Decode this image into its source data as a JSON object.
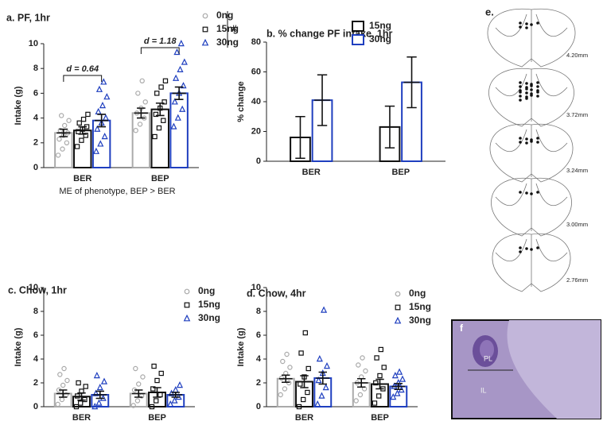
{
  "chart_data": [
    {
      "type": "bar",
      "title": "a. PF, 1hr",
      "ylabel": "Intake (g)",
      "categories": [
        "BER",
        "BEP"
      ],
      "ylim": [
        0,
        10
      ],
      "yticks": [
        0,
        2,
        4,
        6,
        8,
        10
      ],
      "legend": "upper right",
      "note": "ME of phenotype, BEP > BER",
      "annotations": [
        {
          "text": "d = 0.64"
        },
        {
          "text": "d = 1.18"
        },
        {
          "text": "#"
        }
      ],
      "series": [
        {
          "name": "0ng",
          "color": "#aaaaaa",
          "marker": "circle",
          "values": [
            2.8,
            4.4
          ],
          "errors": [
            0.3,
            0.4
          ],
          "points": [
            [
              1.0,
              1.5,
              2.0,
              2.3,
              2.6,
              2.8,
              3.0,
              3.4,
              3.8,
              4.2
            ],
            [
              3.0,
              3.5,
              4.0,
              4.4,
              4.8,
              5.3,
              6.0,
              7.0
            ]
          ]
        },
        {
          "name": "15ng",
          "color": "#111111",
          "marker": "square",
          "values": [
            3.0,
            4.7
          ],
          "errors": [
            0.3,
            0.5
          ],
          "points": [
            [
              1.7,
              2.2,
              2.6,
              2.9,
              3.1,
              3.3,
              3.6,
              3.9,
              4.3
            ],
            [
              2.5,
              3.2,
              3.8,
              4.3,
              4.8,
              5.3,
              6.0,
              6.5,
              7.0
            ]
          ]
        },
        {
          "name": "30ng",
          "color": "#1f3fbf",
          "marker": "triangle",
          "values": [
            3.8,
            6.0
          ],
          "errors": [
            0.5,
            0.5
          ],
          "points": [
            [
              1.3,
              1.9,
              2.5,
              3.1,
              3.6,
              4.0,
              4.5,
              5.0,
              5.7,
              6.3,
              6.9
            ],
            [
              3.3,
              4.0,
              4.7,
              5.3,
              6.0,
              6.6,
              7.2,
              7.9,
              8.5,
              9.3,
              10.0
            ]
          ]
        }
      ]
    },
    {
      "type": "bar",
      "title": "b. % change PF intake, 1hr",
      "ylabel": "% change",
      "categories": [
        "BER",
        "BEP"
      ],
      "ylim": [
        0,
        80
      ],
      "yticks": [
        0,
        20,
        40,
        60,
        80
      ],
      "legend": "upper right",
      "series": [
        {
          "name": "15ng",
          "color": "#111111",
          "values": [
            16,
            23
          ],
          "errors": [
            14,
            14
          ]
        },
        {
          "name": "30ng",
          "color": "#1f3fbf",
          "values": [
            41,
            53
          ],
          "errors": [
            17,
            17
          ]
        }
      ]
    },
    {
      "type": "bar",
      "title": "c. Chow, 1hr",
      "ylabel": "Intake (g)",
      "categories": [
        "BER",
        "BEP"
      ],
      "ylim": [
        0,
        10
      ],
      "yticks": [
        0,
        2,
        4,
        6,
        8,
        10
      ],
      "legend": "upper right",
      "series": [
        {
          "name": "0ng",
          "color": "#aaaaaa",
          "marker": "circle",
          "values": [
            1.1,
            1.1
          ],
          "errors": [
            0.3,
            0.3
          ],
          "points": [
            [
              0.2,
              0.6,
              1.0,
              1.4,
              1.8,
              2.2,
              2.7,
              3.2
            ],
            [
              0.1,
              0.5,
              0.9,
              1.4,
              1.9,
              2.5,
              3.2
            ]
          ]
        },
        {
          "name": "15ng",
          "color": "#111111",
          "marker": "square",
          "values": [
            0.85,
            1.2
          ],
          "errors": [
            0.3,
            0.4
          ],
          "points": [
            [
              0,
              0.3,
              0.6,
              0.9,
              1.3,
              1.7,
              2.0
            ],
            [
              0,
              0.5,
              1.0,
              1.5,
              2.2,
              2.8,
              3.4
            ]
          ]
        },
        {
          "name": "30ng",
          "color": "#1f3fbf",
          "marker": "triangle",
          "values": [
            1.0,
            1.0
          ],
          "errors": [
            0.3,
            0.2
          ],
          "points": [
            [
              0,
              0.3,
              0.7,
              1.1,
              1.6,
              2.1,
              2.6
            ],
            [
              0.2,
              0.5,
              0.8,
              1.1,
              1.4,
              1.8
            ]
          ]
        }
      ]
    },
    {
      "type": "bar",
      "title": "d. Chow, 4hr",
      "ylabel": "Intake (g)",
      "categories": [
        "BER",
        "BEP"
      ],
      "ylim": [
        0,
        10
      ],
      "yticks": [
        0,
        2,
        4,
        6,
        8,
        10
      ],
      "legend": "upper right",
      "series": [
        {
          "name": "0ng",
          "color": "#aaaaaa",
          "marker": "circle",
          "values": [
            2.35,
            2.0
          ],
          "errors": [
            0.3,
            0.35
          ],
          "points": [
            [
              1.0,
              1.5,
              2.0,
              2.4,
              2.8,
              3.3,
              3.8,
              4.4
            ],
            [
              0.5,
              1.0,
              1.5,
              2.0,
              2.5,
              3.0,
              3.5,
              4.1
            ]
          ]
        },
        {
          "name": "15ng",
          "color": "#111111",
          "marker": "square",
          "values": [
            2.1,
            1.9
          ],
          "errors": [
            0.5,
            0.4
          ],
          "points": [
            [
              0,
              0.6,
              1.2,
              1.9,
              2.5,
              3.2,
              4.5,
              6.2
            ],
            [
              0.3,
              0.9,
              1.5,
              2.0,
              2.6,
              3.3,
              4.1,
              4.8
            ]
          ]
        },
        {
          "name": "30ng",
          "color": "#1f3fbf",
          "marker": "triangle",
          "values": [
            2.4,
            1.7
          ],
          "errors": [
            0.5,
            0.25
          ],
          "points": [
            [
              0.2,
              0.9,
              1.6,
              2.2,
              2.8,
              3.4,
              4.0,
              8.1
            ],
            [
              0.8,
              1.1,
              1.4,
              1.7,
              2.0,
              2.3,
              2.6,
              2.9
            ]
          ]
        }
      ]
    }
  ],
  "panel_e": {
    "label": "e.",
    "levels": [
      "4.20mm",
      "3.72mm",
      "3.24mm",
      "3.00mm",
      "2.76mm"
    ]
  },
  "panel_f": {
    "label": "f",
    "regions": [
      "PL",
      "IL"
    ]
  }
}
